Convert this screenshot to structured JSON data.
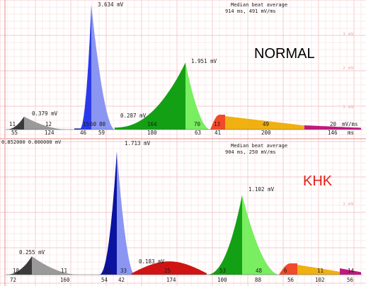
{
  "chart_data": [
    {
      "type": "area",
      "title": "NORMAL",
      "header": [
        "Median beat average",
        "914 ms, 491 mV/ms"
      ],
      "top_left_text": "",
      "units_label": "mV/ms",
      "ms_label": "ms",
      "scale_labels": [
        "1 mV",
        "2 mV",
        "3 mV"
      ],
      "peaks": [
        {
          "label": "0.379 mV",
          "value": 0.379,
          "color": "#3a3a3a"
        },
        {
          "label": "3.634 mV",
          "value": 3.634,
          "color": "#1f2fe0"
        },
        {
          "label": "0.287 mV",
          "value": 0.287,
          "color": "#1a1a1a"
        },
        {
          "label": "1.951 mV",
          "value": 1.951,
          "color": "#009a00"
        }
      ],
      "segments": [
        {
          "name": "11",
          "color": "#3a3a3a"
        },
        {
          "name": "12",
          "color": "#9a9a9a"
        },
        {
          "name": "15",
          "color": "#0a14a0"
        },
        {
          "name": "60",
          "color": "#2a3ae8"
        },
        {
          "name": "80",
          "color": "#8a96f2"
        },
        {
          "name": "164",
          "color": "#14a014"
        },
        {
          "name": "70",
          "color": "#78ee60"
        },
        {
          "name": "13",
          "color": "#f04a2a"
        },
        {
          "name": "49",
          "color": "#f0b010"
        },
        {
          "name": "20",
          "color": "#c01880"
        }
      ],
      "axis": [
        "55",
        "124",
        "46",
        "59",
        "180",
        "63",
        "41",
        "200",
        "146"
      ]
    },
    {
      "type": "area",
      "title": "KHK",
      "header": [
        "Median beat average",
        "904 ms, 250 mV/ms"
      ],
      "top_left_text": "0.852000   0.000000 mV",
      "units_label": "",
      "ms_label": "",
      "scale_labels": [
        "1 mV"
      ],
      "peaks": [
        {
          "label": "0.255 mV",
          "value": 0.255,
          "color": "#7a7a7a"
        },
        {
          "label": "1.713 mV",
          "value": 1.713,
          "color": "#1f2fe0"
        },
        {
          "label": "0.183 mV",
          "value": 0.183,
          "color": "#d81414"
        },
        {
          "label": "1.102 mV",
          "value": 1.102,
          "color": "#10b010"
        }
      ],
      "segments": [
        {
          "name": "18",
          "color": "#3a3a3a"
        },
        {
          "name": "11",
          "color": "#9a9a9a"
        },
        {
          "name": "21",
          "color": "#0a14a0"
        },
        {
          "name": "33",
          "color": "#8a96f2"
        },
        {
          "name": "25",
          "color": "#d01414"
        },
        {
          "name": "53",
          "color": "#14a014"
        },
        {
          "name": "48",
          "color": "#78ee60"
        },
        {
          "name": "6",
          "color": "#f04a2a"
        },
        {
          "name": "11",
          "color": "#f0b010"
        },
        {
          "name": "14",
          "color": "#c01880"
        }
      ],
      "axis": [
        "72",
        "160",
        "54",
        "42",
        "174",
        "100",
        "88",
        "56",
        "102",
        "56"
      ]
    }
  ]
}
